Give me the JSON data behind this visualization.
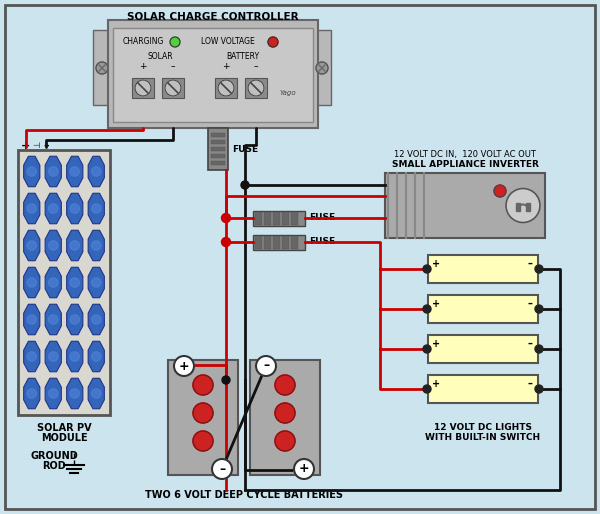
{
  "bg_color": "#cce4ee",
  "border_color": "#777777",
  "title": "SOLAR CHARGE CONTROLLER",
  "subtitle1": "SMALL APPLIANCE INVERTER",
  "subtitle2": "12 VOLT DC IN,  120 VOLT AC OUT",
  "label_solar_pv": "SOLAR PV\nMODULE",
  "label_ground": "GROUND\nROD",
  "label_batteries": "TWO 6 VOLT DEEP CYCLE BATTERIES",
  "label_lights": "12 VOLT DC LIGHTS\nWITH BUILT-IN SWITCH",
  "label_fuse": "FUSE",
  "wire_red": "#cc0000",
  "wire_black": "#111111",
  "ctrl_gray": "#b8b8b8",
  "ctrl_inner": "#c8c8c8",
  "solar_frame": "#d8d8d0",
  "solar_cell": "#3366bb",
  "solar_cell_highlight": "#5588dd",
  "battery_gray": "#aaaaaa",
  "light_yellow": "#ffffbb",
  "green_led": "#55cc44",
  "red_led": "#cc2222",
  "inv_gray": "#aaaaaa",
  "inv_rib": "#888888"
}
